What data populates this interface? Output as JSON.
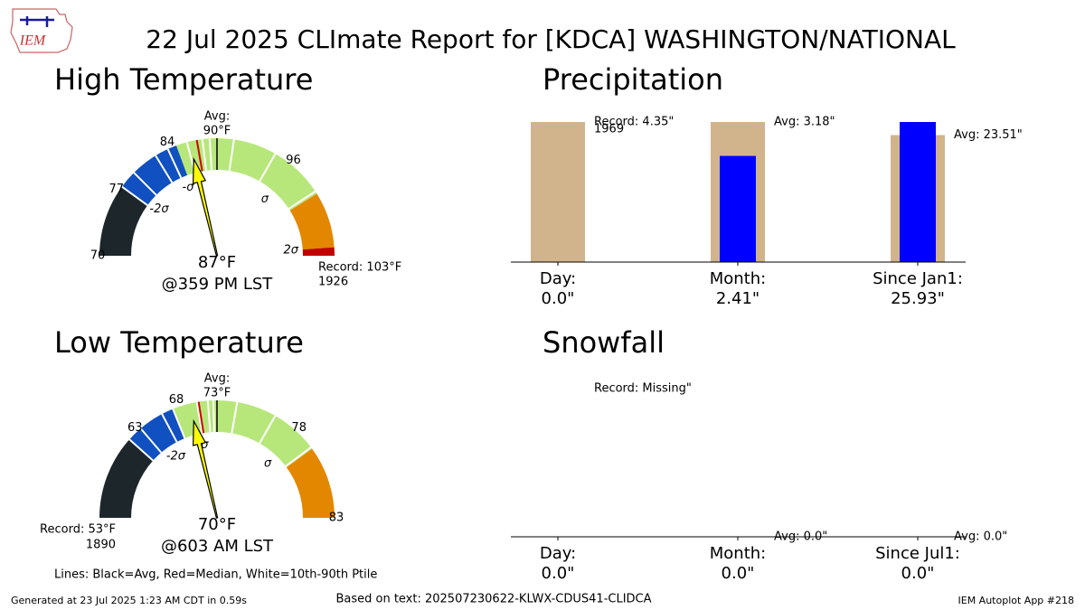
{
  "logo": "IEM",
  "title": "22 Jul 2025 CLImate Report for [KDCA] WASHINGTON/NATIONAL",
  "gauges": [
    {
      "title": "High Temperature",
      "lim": [
        70,
        103
      ],
      "ticks": [
        70,
        77,
        84,
        96
      ],
      "avg": {
        "value": 90,
        "label": "90°F"
      },
      "avg_caption": "Avg:",
      "median": 87.8,
      "sigma": [
        {
          "value": 78.6,
          "label": "-2σ"
        },
        {
          "value": 84.9,
          "label": "-σ"
        },
        {
          "value": 95.8,
          "label": "σ"
        },
        {
          "value": 102.4,
          "label": "2σ"
        }
      ],
      "segments": [
        {
          "to": 78,
          "color": "#1c262b"
        },
        {
          "to": 85.5,
          "color": "#1050c0"
        },
        {
          "to": 98.4,
          "color": "#b7e77a"
        },
        {
          "to": 102.4,
          "color": "#e38700"
        },
        {
          "to": 103,
          "color": "#c00000"
        }
      ],
      "percentile_lines": [
        78,
        80,
        83,
        84.5,
        86.7,
        88.4,
        89.2,
        91.2,
        94.3,
        98.2
      ],
      "observed": {
        "value": 87,
        "label": "87°F"
      },
      "time": "@359 PM LST",
      "record": {
        "value": 103,
        "label": "Record: 103°F",
        "year": "1926"
      }
    },
    {
      "title": "Low Temperature",
      "lim": [
        53,
        83
      ],
      "ticks": [
        63,
        68,
        78,
        83
      ],
      "avg": {
        "value": 73,
        "label": "73°F"
      },
      "avg_caption": "Avg:",
      "median": 71,
      "sigma": [
        {
          "value": 65.5,
          "label": "-2σ"
        },
        {
          "value": 70.5,
          "label": "-σ"
        },
        {
          "value": 77.8,
          "label": "σ"
        }
      ],
      "segments": [
        {
          "to": 62.3,
          "color": "#1c262b"
        },
        {
          "to": 68.1,
          "color": "#1050c0"
        },
        {
          "to": 79,
          "color": "#b7e77a"
        },
        {
          "to": 83,
          "color": "#e38700"
        }
      ],
      "percentile_lines": [
        62.3,
        64,
        66.8,
        68.1,
        70.8,
        72,
        72.6,
        74.1,
        76.3,
        78.9
      ],
      "observed": {
        "value": 70,
        "label": "70°F"
      },
      "time": "@603 AM LST",
      "record": {
        "value": 53,
        "label": "Record: 53°F",
        "year": "1890"
      }
    }
  ],
  "bars": [
    {
      "title": "Precipitation",
      "categories": [
        "Day:",
        "Month:",
        "Since Jan1:"
      ],
      "values": [
        0,
        2.41,
        25.93
      ],
      "value_labels": [
        "0.0\"",
        "2.41\"",
        "25.93\""
      ],
      "color": "#0000ff",
      "reference": {
        "values": [
          4.35,
          3.18,
          23.51
        ],
        "labels": [
          "Record: 4.35\"",
          "Avg: 3.18\"",
          "Avg: 23.51\""
        ],
        "color": "#d2b48c"
      },
      "record_year": "1969"
    },
    {
      "title": "Snowfall",
      "categories": [
        "Day:",
        "Month:",
        "Since Jul1:"
      ],
      "values": [
        0,
        0,
        0
      ],
      "value_labels": [
        "0.0\"",
        "0.0\"",
        "0.0\""
      ],
      "color": "#0000ff",
      "reference": {
        "values": [
          null,
          0,
          0
        ],
        "labels": [
          "Record: Missing\"",
          "Avg: 0.0\"",
          "Avg: 0.0\""
        ],
        "color": "#d2b48c"
      }
    }
  ],
  "legend_note": "Lines: Black=Avg, Red=Median, White=10th-90th Ptile",
  "footer": {
    "generated": "Generated at 23 Jul 2025 1:23 AM CDT in 0.59s",
    "source": "Based on text: 202507230622-KLWX-CDUS41-CLIDCA",
    "app": "IEM Autoplot App #218"
  }
}
